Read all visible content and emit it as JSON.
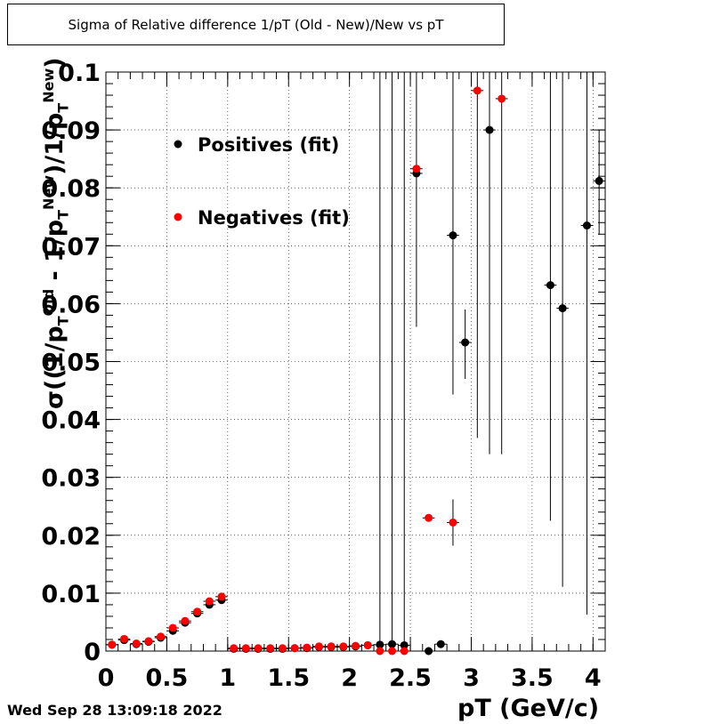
{
  "chart_data": {
    "type": "scatter",
    "title": "Sigma of Relative difference 1/pT (Old - New)/New vs pT",
    "xlabel": "pT (GeV/c)",
    "ylabel": "σ((1/p_T^Old - 1/p_T^New)/1/p_T^New)",
    "xlim": [
      0,
      4.1
    ],
    "ylim": [
      0,
      0.1
    ],
    "grid": true,
    "legend_placement": "top-left",
    "x_tick_labels": [
      "0",
      "0.5",
      "1",
      "1.5",
      "2",
      "2.5",
      "3",
      "3.5",
      "4"
    ],
    "y_tick_labels": [
      "0",
      "0.01",
      "0.02",
      "0.03",
      "0.04",
      "0.05",
      "0.06",
      "0.07",
      "0.08",
      "0.09",
      "0.1"
    ],
    "series": [
      {
        "name": "Positives (fit)",
        "color": "#000000",
        "x": [
          0.05,
          0.15,
          0.25,
          0.35,
          0.45,
          0.55,
          0.65,
          0.75,
          0.85,
          0.95,
          1.05,
          1.15,
          1.25,
          1.35,
          1.45,
          1.55,
          1.65,
          1.75,
          1.85,
          1.95,
          2.05,
          2.15,
          2.25,
          2.35,
          2.45,
          2.55,
          2.65,
          2.75,
          2.85,
          2.95,
          3.15,
          3.65,
          3.75,
          3.95,
          4.05
        ],
        "y": [
          0.0011,
          0.0019,
          0.0012,
          0.0016,
          0.0023,
          0.0035,
          0.0049,
          0.0065,
          0.008,
          0.0088,
          0.0004,
          0.0004,
          0.0004,
          0.0004,
          0.0004,
          0.0005,
          0.0005,
          0.0007,
          0.0007,
          0.0007,
          0.0008,
          0.001,
          0.0011,
          0.0012,
          0.001,
          0.0825,
          0.0,
          0.0012,
          0.0718,
          0.0533,
          0.09,
          0.0632,
          0.0592,
          0.0735,
          0.0812
        ],
        "err_low": [
          0,
          0,
          0,
          0,
          0,
          0,
          0,
          0,
          0,
          0,
          0,
          0,
          0,
          0,
          0,
          0,
          0,
          0,
          0,
          0,
          0,
          0,
          0.0011,
          0.0012,
          0.001,
          0.0265,
          0,
          0,
          0.0275,
          0.0063,
          0.056,
          0.0407,
          0.0481,
          0.0672,
          0.0093
        ],
        "err_high": [
          0,
          0,
          0,
          0,
          0,
          0,
          0,
          0,
          0,
          0,
          0,
          0,
          0,
          0,
          0,
          0,
          0,
          0,
          0,
          0,
          0,
          0,
          0.0989,
          0.0988,
          0.099,
          0.0175,
          0,
          0,
          0.0282,
          0.0057,
          0.01,
          0.0368,
          0.0408,
          0.0265,
          0.0088
        ]
      },
      {
        "name": "Negatives (fit)",
        "color": "#ff0000",
        "x": [
          0.05,
          0.15,
          0.25,
          0.35,
          0.45,
          0.55,
          0.65,
          0.75,
          0.85,
          0.95,
          1.05,
          1.15,
          1.25,
          1.35,
          1.45,
          1.55,
          1.65,
          1.75,
          1.85,
          1.95,
          2.05,
          2.15,
          2.25,
          2.35,
          2.45,
          2.55,
          2.65,
          2.85,
          3.05,
          3.25
        ],
        "y": [
          0.0011,
          0.0021,
          0.0013,
          0.0017,
          0.0025,
          0.004,
          0.0052,
          0.0068,
          0.0086,
          0.0094,
          0.0005,
          0.0005,
          0.0005,
          0.0005,
          0.0005,
          0.0005,
          0.0006,
          0.0008,
          0.0008,
          0.0008,
          0.0009,
          0.001,
          0.0,
          0.0,
          0.0,
          0.0833,
          0.023,
          0.0222,
          0.0968,
          0.0954
        ],
        "err_low": [
          0,
          0,
          0,
          0,
          0,
          0,
          0,
          0,
          0,
          0,
          0,
          0,
          0,
          0,
          0,
          0,
          0,
          0,
          0,
          0,
          0,
          0,
          0,
          0,
          0,
          0,
          0,
          0.004,
          0.06,
          0.0614
        ],
        "err_high": [
          0,
          0,
          0,
          0,
          0,
          0,
          0,
          0,
          0,
          0,
          0,
          0,
          0,
          0,
          0,
          0,
          0,
          0,
          0,
          0,
          0,
          0,
          0,
          0,
          0,
          0,
          0,
          0.004,
          0.0032,
          0.0046
        ]
      }
    ]
  },
  "footer": {
    "datestamp": "Wed Sep 28 13:09:18 2022"
  }
}
